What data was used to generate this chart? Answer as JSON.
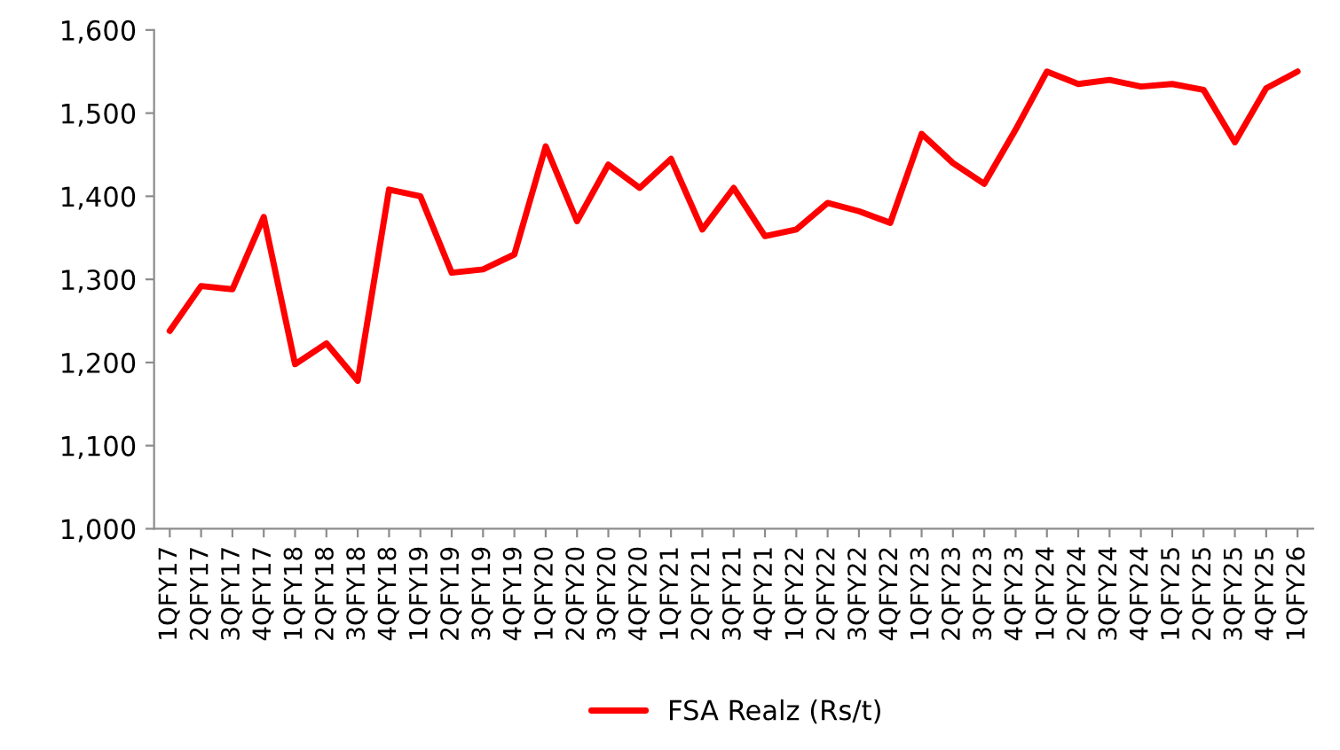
{
  "chart_data": {
    "type": "line",
    "categories": [
      "1QFY17",
      "2QFY17",
      "3QFY17",
      "4QFY17",
      "1QFY18",
      "2QFY18",
      "3QFY18",
      "4QFY18",
      "1QFY19",
      "2QFY19",
      "3QFY19",
      "4QFY19",
      "1QFY20",
      "2QFY20",
      "3QFY20",
      "4QFY20",
      "1QFY21",
      "2QFY21",
      "3QFY21",
      "4QFY21",
      "1QFY22",
      "2QFY22",
      "3QFY22",
      "4QFY22",
      "1QFY23",
      "2QFY23",
      "3QFY23",
      "4QFY23",
      "1QFY24",
      "2QFY24",
      "3QFY24",
      "4QFY24",
      "1QFY25",
      "2QFY25",
      "3QFY25",
      "4QFY25",
      "1QFY26"
    ],
    "series": [
      {
        "name": "FSA Realz (Rs/t)",
        "color": "#ff0000",
        "values": [
          1238,
          1292,
          1288,
          1375,
          1198,
          1223,
          1178,
          1408,
          1400,
          1308,
          1312,
          1330,
          1460,
          1370,
          1438,
          1410,
          1445,
          1360,
          1410,
          1352,
          1360,
          1392,
          1382,
          1368,
          1475,
          1440,
          1415,
          1480,
          1550,
          1535,
          1540,
          1532,
          1535,
          1528,
          1465,
          1530,
          1550
        ]
      }
    ],
    "ylim": [
      1000,
      1600
    ],
    "yticks": [
      {
        "value": 1000,
        "label": "1,000"
      },
      {
        "value": 1100,
        "label": "1,100"
      },
      {
        "value": 1200,
        "label": "1,200"
      },
      {
        "value": 1300,
        "label": "1,300"
      },
      {
        "value": 1400,
        "label": "1,400"
      },
      {
        "value": 1500,
        "label": "1,500"
      },
      {
        "value": 1600,
        "label": "1,600"
      }
    ],
    "grid": false,
    "legend": "bottom",
    "marker": "none",
    "line_style": "solid"
  }
}
